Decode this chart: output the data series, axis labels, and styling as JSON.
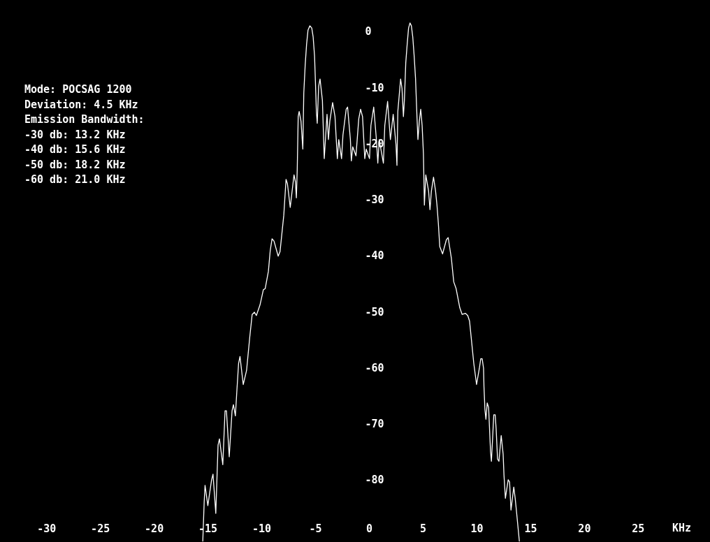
{
  "chart_data": {
    "type": "line",
    "xlabel": "KHz",
    "xlim": [
      -34.3,
      31.7
    ],
    "ylim": [
      -91.1,
      5.6
    ],
    "xticks": [
      -30,
      -25,
      -20,
      -15,
      -10,
      -5,
      0,
      5,
      10,
      15,
      20,
      {
        "value": 25,
        "label": "25"
      }
    ],
    "yticks": [
      0,
      -10,
      -20,
      -30,
      -40,
      -50,
      -60,
      -70,
      -80
    ],
    "grid": false,
    "legend": false,
    "annotations": [
      "Mode: POCSAG 1200",
      "Deviation: 4.5 KHz",
      "Emission Bandwidth:",
      "-30 db: 13.2 KHz",
      "-40 db: 15.6 KHz",
      "-50 db: 18.2 KHz",
      "-60 db: 21.0 KHz"
    ],
    "series": [
      {
        "color": "#ffffff",
        "x": [
          -15.45,
          -15.32,
          -15.24,
          -14.98,
          -14.63,
          -14.5,
          -14.24,
          -14.03,
          -13.9,
          -13.59,
          -13.38,
          -13.25,
          -12.99,
          -12.73,
          -12.6,
          -12.42,
          -12.29,
          -12.12,
          -11.99,
          -11.69,
          -11.38,
          -11.08,
          -10.86,
          -10.65,
          -10.47,
          -10.13,
          -9.82,
          -9.65,
          -9.35,
          -9.18,
          -9.01,
          -8.83,
          -8.44,
          -8.27,
          -7.92,
          -7.71,
          -7.58,
          -7.32,
          -6.97,
          -6.84,
          -6.75,
          -6.67,
          -6.58,
          -6.49,
          -6.32,
          -6.15,
          -6.06,
          -5.93,
          -5.8,
          -5.67,
          -5.5,
          -5.32,
          -5.19,
          -5.06,
          -4.98,
          -4.89,
          -4.81,
          -4.68,
          -4.55,
          -4.33,
          -4.16,
          -3.9,
          -3.77,
          -3.64,
          -3.38,
          -3.16,
          -2.94,
          -2.81,
          -2.55,
          -2.42,
          -2.12,
          -1.99,
          -1.73,
          -1.64,
          -1.51,
          -1.21,
          -0.95,
          -0.78,
          -0.6,
          -0.39,
          -0.26,
          0.05,
          0.18,
          0.44,
          0.69,
          0.82,
          0.95,
          1.34,
          1.47,
          1.73,
          1.99,
          2.25,
          2.51,
          2.6,
          2.68,
          2.94,
          3.07,
          3.2,
          3.29,
          3.42,
          3.55,
          3.68,
          3.81,
          3.94,
          4.07,
          4.2,
          4.33,
          4.46,
          4.55,
          4.68,
          4.81,
          4.94,
          5.06,
          5.15,
          5.28,
          5.54,
          5.67,
          5.8,
          6.0,
          6.19,
          6.32,
          6.45,
          6.58,
          6.84,
          7.19,
          7.36,
          7.66,
          7.79,
          7.88,
          8.1,
          8.44,
          8.66,
          8.96,
          9.18,
          9.35,
          9.48,
          9.74,
          10.0,
          10.26,
          10.39,
          10.52,
          10.65,
          10.69,
          10.78,
          10.87,
          10.99,
          11.12,
          11.3,
          11.38,
          11.47,
          11.6,
          11.73,
          11.82,
          11.95,
          12.08,
          12.29,
          12.47,
          12.55,
          12.68,
          12.94,
          13.07,
          13.2,
          13.46,
          13.59,
          13.72,
          13.98
        ],
        "values": [
          -91.0,
          -84.0,
          -81.0,
          -84.6,
          -80.0,
          -79.0,
          -86.0,
          -73.8,
          -72.7,
          -77.3,
          -67.7,
          -67.7,
          -75.9,
          -67.7,
          -66.6,
          -68.6,
          -64.4,
          -59.2,
          -58.0,
          -63.0,
          -60.5,
          -54.5,
          -50.5,
          -50.1,
          -50.7,
          -48.8,
          -46.1,
          -45.9,
          -42.8,
          -39.1,
          -37.0,
          -37.4,
          -40.1,
          -39.3,
          -32.8,
          -26.4,
          -27.2,
          -31.4,
          -25.6,
          -26.8,
          -29.7,
          -24.7,
          -15.2,
          -14.3,
          -16.0,
          -21.0,
          -11.0,
          -6.0,
          -2.3,
          0.2,
          1.0,
          0.6,
          -1.0,
          -4.4,
          -8.9,
          -14.3,
          -16.4,
          -9.8,
          -8.5,
          -12.3,
          -22.7,
          -14.8,
          -19.3,
          -16.0,
          -12.7,
          -15.2,
          -22.7,
          -19.3,
          -22.7,
          -18.5,
          -13.9,
          -13.5,
          -19.3,
          -23.1,
          -20.6,
          -22.2,
          -15.6,
          -13.9,
          -15.2,
          -22.7,
          -21.0,
          -22.7,
          -16.8,
          -13.5,
          -19.3,
          -23.5,
          -19.3,
          -23.5,
          -16.8,
          -12.5,
          -19.3,
          -14.8,
          -20.2,
          -23.9,
          -14.3,
          -8.5,
          -10.2,
          -15.2,
          -12.3,
          -5.6,
          -2.3,
          0.6,
          1.5,
          1.0,
          -1.0,
          -4.4,
          -8.5,
          -15.2,
          -19.3,
          -16.0,
          -13.9,
          -16.8,
          -21.8,
          -31.0,
          -25.6,
          -28.5,
          -31.8,
          -28.5,
          -26.0,
          -28.5,
          -31.0,
          -34.3,
          -38.4,
          -39.7,
          -37.2,
          -36.8,
          -40.5,
          -43.0,
          -44.7,
          -45.9,
          -49.3,
          -50.5,
          -50.3,
          -50.7,
          -51.7,
          -54.2,
          -59.2,
          -63.0,
          -60.1,
          -58.4,
          -58.4,
          -60.1,
          -63.4,
          -67.5,
          -69.2,
          -66.3,
          -67.1,
          -75.0,
          -76.7,
          -73.4,
          -68.4,
          -68.4,
          -70.9,
          -76.3,
          -76.7,
          -72.1,
          -75.4,
          -79.2,
          -83.3,
          -80.0,
          -80.4,
          -85.4,
          -81.3,
          -83.3,
          -85.8,
          -91.0
        ]
      }
    ]
  }
}
